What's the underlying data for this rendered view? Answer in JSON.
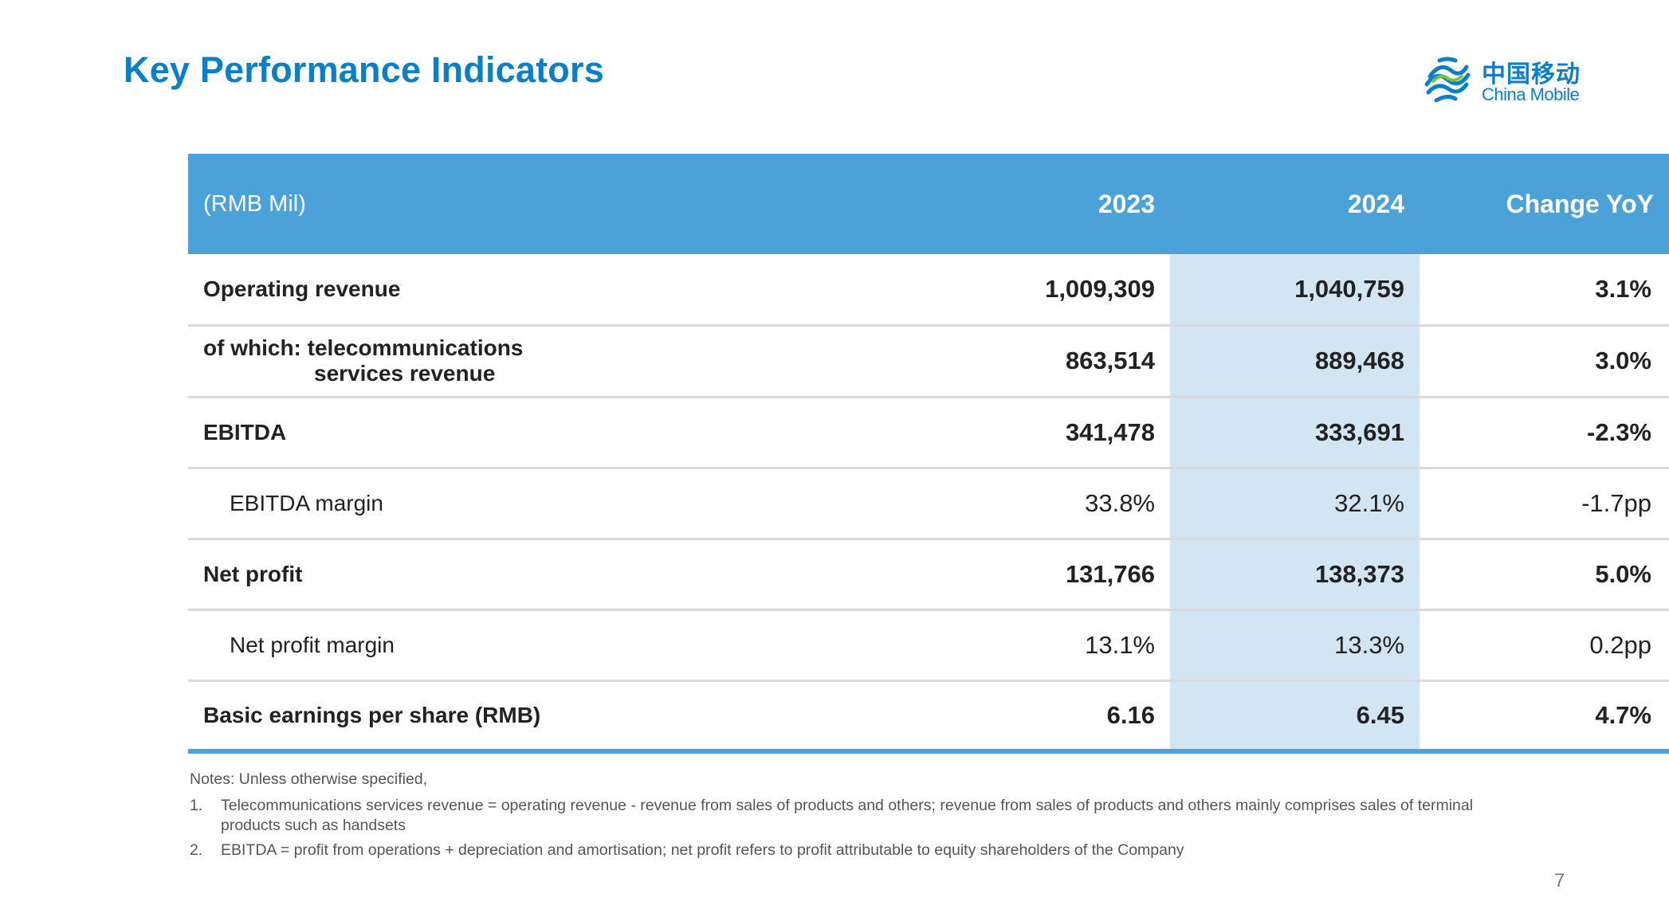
{
  "title": "Key Performance Indicators",
  "logo": {
    "cn": "中国移动",
    "en": "China Mobile",
    "brand_color": "#0a7fc9"
  },
  "table": {
    "header": {
      "unit": "(RMB Mil)",
      "col1": "2023",
      "col2": "2024",
      "col3": "Change YoY"
    },
    "rows": [
      {
        "label": "Operating revenue",
        "v2023": "1,009,309",
        "v2024": "1,040,759",
        "change": "3.1%"
      },
      {
        "label_line1": "of which: telecommunications",
        "label_line2": "services revenue",
        "v2023": "863,514",
        "v2024": "889,468",
        "change": "3.0%"
      },
      {
        "label": "EBITDA",
        "v2023": "341,478",
        "v2024": "333,691",
        "change": "-2.3%"
      },
      {
        "label": "EBITDA margin",
        "v2023": "33.8%",
        "v2024": "32.1%",
        "change": "-1.7pp"
      },
      {
        "label": "Net profit",
        "v2023": "131,766",
        "v2024": "138,373",
        "change": "5.0%"
      },
      {
        "label": "Net profit margin",
        "v2023": "13.1%",
        "v2024": "13.3%",
        "change": "0.2pp"
      },
      {
        "label": "Basic earnings per share (RMB)",
        "v2023": "6.16",
        "v2024": "6.45",
        "change": "4.7%"
      }
    ],
    "colors": {
      "header_bg": "#4aa2d8",
      "highlight_col": "#d2e5f2",
      "row_divider": "#d9d9d9"
    }
  },
  "notes": {
    "heading": "Notes: Unless otherwise specified,",
    "items": [
      {
        "num": "1.",
        "text": "Telecommunications services revenue = operating revenue - revenue from sales of products and others; revenue from sales of products and others mainly comprises sales of terminal products such as handsets"
      },
      {
        "num": "2.",
        "text": "EBITDA = profit from operations + depreciation and amortisation; net profit refers to profit attributable to equity shareholders of the Company"
      }
    ]
  },
  "page_number": "7"
}
